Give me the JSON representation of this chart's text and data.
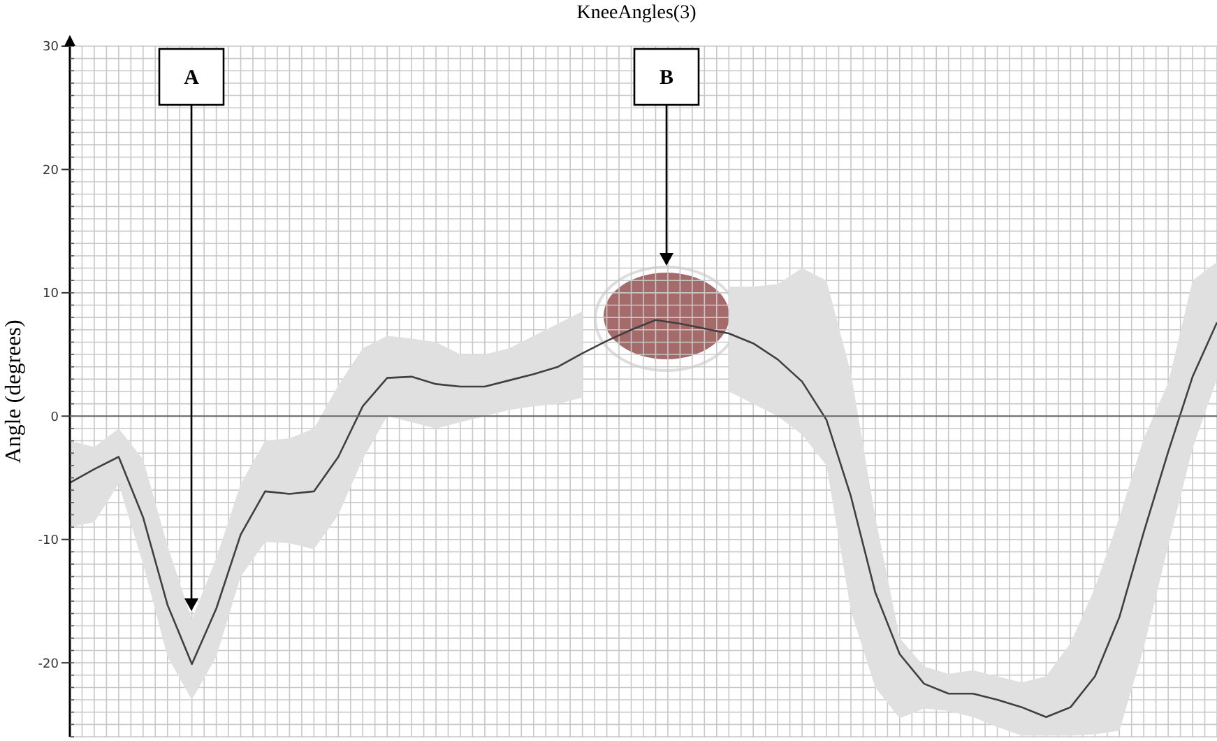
{
  "chart_data": {
    "type": "line",
    "title": "KneeAngles(3)",
    "ylabel": "Angle (degrees)",
    "categories": [
      null,
      null,
      null,
      null,
      null,
      null,
      null,
      null,
      null,
      null,
      null,
      null,
      null,
      null,
      null,
      null,
      null,
      null,
      null,
      null,
      null,
      null,
      null,
      null,
      null,
      null,
      null,
      null,
      null,
      null,
      null,
      null,
      null,
      null,
      null,
      null,
      null,
      null,
      null,
      null,
      null,
      null,
      null,
      null,
      null,
      null,
      null,
      null
    ],
    "series": [
      {
        "color": "#404040",
        "values": [
          -5.4,
          -4.3,
          -3.3,
          -8.2,
          -15.3,
          -20.1,
          -15.6,
          -9.6,
          -6.1,
          -6.3,
          -6.1,
          -3.3,
          0.8,
          3.1,
          3.2,
          2.6,
          2.4,
          2.4,
          2.9,
          3.4,
          4.0,
          5.1,
          6.1,
          7.0,
          7.8,
          7.5,
          7.1,
          6.7,
          5.9,
          4.6,
          2.8,
          -0.3,
          -6.5,
          -14.3,
          -19.3,
          -21.7,
          -22.5,
          -22.5,
          -23.0,
          -23.6,
          -24.4,
          -23.6,
          -21.1,
          -16.3,
          -9.4,
          -2.9,
          3.2,
          7.6
        ],
        "lower": [
          -9.0,
          -8.6,
          -5.5,
          -12.0,
          -19.5,
          -23.0,
          -19.5,
          -13.0,
          -10.2,
          -10.3,
          -10.8,
          -8.0,
          -3.5,
          0.0,
          -0.5,
          -1.0,
          -0.5,
          0.0,
          0.5,
          0.8,
          1.0,
          1.5,
          null,
          null,
          null,
          null,
          null,
          2.0,
          1.0,
          0.0,
          -1.5,
          -4.0,
          -15.8,
          -22.0,
          -24.5,
          -23.7,
          -23.9,
          -24.4,
          -25.2,
          -25.9,
          -25.9,
          -25.9,
          -25.8,
          -25.5,
          -18.8,
          -10.5,
          -2.6,
          3.0
        ],
        "upper": [
          -2.0,
          -2.5,
          -1.0,
          -3.5,
          -10.5,
          -16.5,
          -11.5,
          -5.5,
          -2.0,
          -1.8,
          -1.0,
          2.5,
          5.5,
          6.5,
          6.3,
          6.0,
          5.0,
          5.0,
          5.5,
          6.5,
          7.5,
          8.5,
          null,
          null,
          null,
          null,
          null,
          10.5,
          10.5,
          10.7,
          12.0,
          11.0,
          3.5,
          -8.2,
          -18.0,
          -20.3,
          -20.9,
          -20.6,
          -21.1,
          -21.6,
          -21.1,
          -18.4,
          -13.9,
          -8.2,
          -1.8,
          2.7,
          11.0,
          12.5
        ]
      }
    ],
    "ylim": [
      -26,
      30
    ],
    "yticks": [
      -20,
      -10,
      0,
      10,
      20,
      30
    ],
    "grid": true,
    "tick_labels": "y",
    "marker": "none",
    "annotations": [
      "A",
      "B"
    ]
  }
}
